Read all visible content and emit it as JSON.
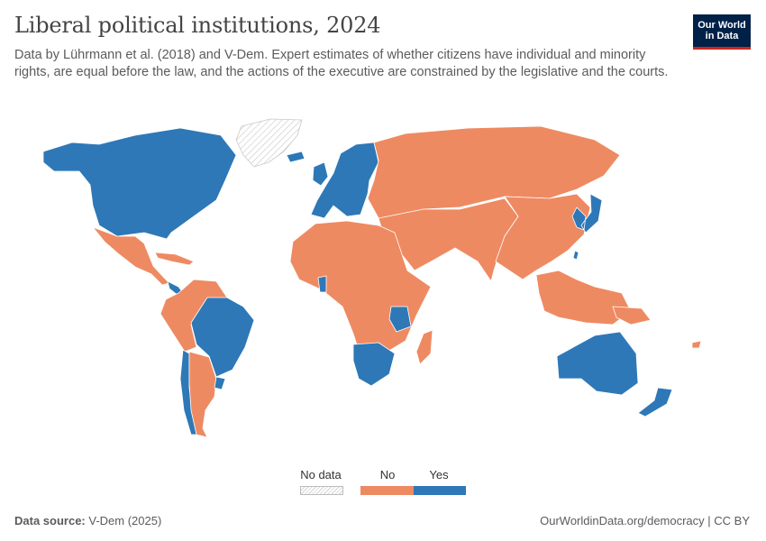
{
  "header": {
    "title": "Liberal political institutions, 2024",
    "subtitle": "Data by Lührmann et al. (2018) and V-Dem. Expert estimates of whether citizens have individual and minority rights, are equal before the law, and the actions of the executive are constrained by the legislative and the courts.",
    "logo_text": "Our World\nin Data"
  },
  "colors": {
    "no": "#ee8a62",
    "yes": "#2e78b7",
    "nodata": "#e8e8e8",
    "border": "#ffffff"
  },
  "legend": {
    "nodata_label": "No data",
    "categories": [
      {
        "label": "No",
        "color": "#ee8a62"
      },
      {
        "label": "Yes",
        "color": "#2e78b7"
      }
    ]
  },
  "footer": {
    "source_label": "Data source:",
    "source_value": "V-Dem (2025)",
    "url": "OurWorldinData.org/democracy | CC BY"
  },
  "map_data": {
    "year": 2024,
    "regions": [
      {
        "name": "Greenland",
        "value": "No data"
      },
      {
        "name": "North America",
        "value": "Yes"
      },
      {
        "name": "Mexico & Central America",
        "value": "No"
      },
      {
        "name": "Costa Rica & Panama",
        "value": "Yes"
      },
      {
        "name": "Colombia, Venezuela, Peru, Bolivia",
        "value": "No"
      },
      {
        "name": "Brazil",
        "value": "Yes"
      },
      {
        "name": "Chile",
        "value": "Yes"
      },
      {
        "name": "Uruguay",
        "value": "Yes"
      },
      {
        "name": "Argentina & Paraguay",
        "value": "No"
      },
      {
        "name": "Western & Northern Europe",
        "value": "Yes"
      },
      {
        "name": "Eastern Europe & Russia",
        "value": "No"
      },
      {
        "name": "Middle East & Central Asia",
        "value": "No"
      },
      {
        "name": "South & Southeast Asia",
        "value": "No"
      },
      {
        "name": "China & Mongolia",
        "value": "No"
      },
      {
        "name": "South Korea & Japan",
        "value": "Yes"
      },
      {
        "name": "Taiwan",
        "value": "Yes"
      },
      {
        "name": "Africa",
        "value": "No"
      },
      {
        "name": "Ghana",
        "value": "Yes"
      },
      {
        "name": "Tanzania",
        "value": "Yes"
      },
      {
        "name": "Southern Africa",
        "value": "Yes"
      },
      {
        "name": "Australia & New Zealand",
        "value": "Yes"
      },
      {
        "name": "Papua New Guinea",
        "value": "No"
      }
    ]
  }
}
